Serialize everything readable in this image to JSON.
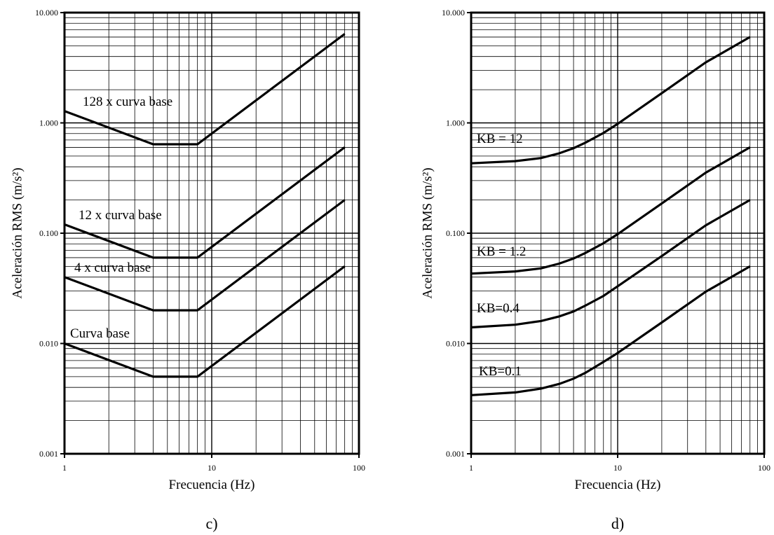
{
  "chart_data": [
    {
      "type": "line",
      "panel_label": "c)",
      "xlabel": "Frecuencia (Hz)",
      "ylabel": "Aceleración RMS (m/s²)",
      "xscale": "log",
      "yscale": "log",
      "xlim": [
        1,
        100
      ],
      "ylim": [
        0.001,
        10
      ],
      "grid": true,
      "x_tick_labels": [
        "1",
        "10",
        "100"
      ],
      "y_tick_labels": [
        "0.001",
        "0.010",
        "0.100",
        "1.000",
        "10.000"
      ],
      "series": [
        {
          "name": "Curva base",
          "x": [
            1,
            4,
            8,
            80
          ],
          "y": [
            0.01,
            0.005,
            0.005,
            0.05
          ]
        },
        {
          "name": "4 x curva base",
          "x": [
            1,
            4,
            8,
            80
          ],
          "y": [
            0.04,
            0.02,
            0.02,
            0.2
          ]
        },
        {
          "name": "12 x curva base",
          "x": [
            1,
            4,
            8,
            80
          ],
          "y": [
            0.12,
            0.06,
            0.06,
            0.6
          ]
        },
        {
          "name": "128 x curva base",
          "x": [
            1,
            4,
            8,
            80
          ],
          "y": [
            1.28,
            0.64,
            0.64,
            6.4
          ]
        }
      ]
    },
    {
      "type": "line",
      "panel_label": "d)",
      "xlabel": "Frecuencia (Hz)",
      "ylabel": "Aceleración RMS (m/s²)",
      "xscale": "log",
      "yscale": "log",
      "xlim": [
        1,
        100
      ],
      "ylim": [
        0.001,
        10
      ],
      "grid": true,
      "x_tick_labels": [
        "1",
        "10",
        "100"
      ],
      "y_tick_labels": [
        "0.001",
        "0.010",
        "0.100",
        "1.000",
        "10.000"
      ],
      "series": [
        {
          "name": "KB=0.1",
          "x": [
            1,
            2,
            3,
            4,
            5,
            6,
            8,
            10,
            20,
            40,
            80
          ],
          "y": [
            0.0034,
            0.0036,
            0.0039,
            0.0043,
            0.0048,
            0.0054,
            0.0068,
            0.0082,
            0.0155,
            0.0295,
            0.05
          ]
        },
        {
          "name": "KB=0.4",
          "x": [
            1,
            2,
            3,
            4,
            5,
            6,
            8,
            10,
            20,
            40,
            80
          ],
          "y": [
            0.014,
            0.0148,
            0.016,
            0.0176,
            0.0195,
            0.022,
            0.027,
            0.033,
            0.062,
            0.118,
            0.2
          ]
        },
        {
          "name": "KB = 1.2",
          "x": [
            1,
            2,
            3,
            4,
            5,
            6,
            8,
            10,
            20,
            40,
            80
          ],
          "y": [
            0.043,
            0.045,
            0.048,
            0.053,
            0.059,
            0.066,
            0.081,
            0.098,
            0.186,
            0.354,
            0.6
          ]
        },
        {
          "name": "KB = 12",
          "x": [
            1,
            2,
            3,
            4,
            5,
            6,
            8,
            10,
            20,
            40,
            80
          ],
          "y": [
            0.43,
            0.45,
            0.48,
            0.53,
            0.59,
            0.66,
            0.81,
            0.98,
            1.86,
            3.54,
            6.0
          ]
        }
      ]
    }
  ]
}
